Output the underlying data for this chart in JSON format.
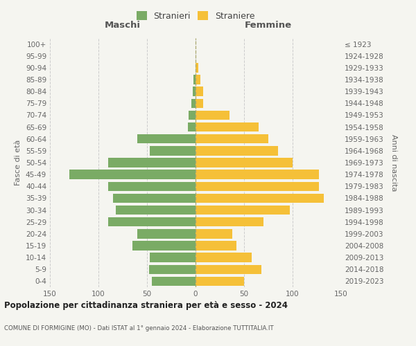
{
  "age_groups": [
    "0-4",
    "5-9",
    "10-14",
    "15-19",
    "20-24",
    "25-29",
    "30-34",
    "35-39",
    "40-44",
    "45-49",
    "50-54",
    "55-59",
    "60-64",
    "65-69",
    "70-74",
    "75-79",
    "80-84",
    "85-89",
    "90-94",
    "95-99",
    "100+"
  ],
  "birth_years": [
    "2019-2023",
    "2014-2018",
    "2009-2013",
    "2004-2008",
    "1999-2003",
    "1994-1998",
    "1989-1993",
    "1984-1988",
    "1979-1983",
    "1974-1978",
    "1969-1973",
    "1964-1968",
    "1959-1963",
    "1954-1958",
    "1949-1953",
    "1944-1948",
    "1939-1943",
    "1934-1938",
    "1929-1933",
    "1924-1928",
    "≤ 1923"
  ],
  "maschi": [
    45,
    48,
    47,
    65,
    60,
    90,
    82,
    85,
    90,
    130,
    90,
    47,
    60,
    8,
    7,
    4,
    3,
    2,
    0,
    0,
    0
  ],
  "femmine": [
    50,
    68,
    58,
    42,
    38,
    70,
    97,
    132,
    127,
    127,
    100,
    85,
    75,
    65,
    35,
    8,
    8,
    5,
    3,
    0,
    0
  ],
  "male_color": "#7aab65",
  "female_color": "#f5c038",
  "bg_color": "#f5f5f0",
  "grid_color": "#cccccc",
  "title": "Popolazione per cittadinanza straniera per età e sesso - 2024",
  "subtitle": "COMUNE DI FORMIGINE (MO) - Dati ISTAT al 1° gennaio 2024 - Elaborazione TUTTITALIA.IT",
  "xlabel_left": "Maschi",
  "xlabel_right": "Femmine",
  "ylabel_left": "Fasce di età",
  "ylabel_right": "Anni di nascita",
  "xlim": 150,
  "legend_stranieri": "Stranieri",
  "legend_straniere": "Straniere"
}
